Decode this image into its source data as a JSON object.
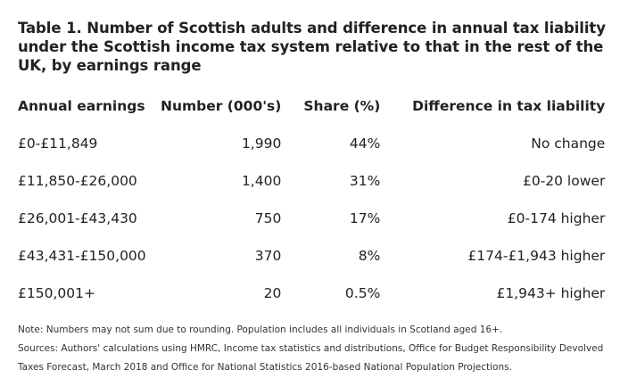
{
  "title": "Table 1. Number of Scottish adults and difference in annual tax liability under the Scottish income tax system relative to that in the rest of the UK, by earnings range",
  "columns": [
    "Annual earnings",
    "Number (000's)",
    "Share (%)",
    "Difference in tax liability"
  ],
  "rows": [
    [
      "£0-£11,849",
      "1,990",
      "44%",
      "No change"
    ],
    [
      "£11,850-£26,000",
      "1,400",
      "31%",
      "£0-20 lower"
    ],
    [
      "£26,001-£43,430",
      "750",
      "17%",
      "£0-174 higher"
    ],
    [
      "£43,431-£150,000",
      "370",
      "8%",
      "£174-£1,943 higher"
    ],
    [
      "£150,001+",
      "20",
      "0.5%",
      "£1,943+ higher"
    ]
  ],
  "notes": [
    "Note: Numbers may not sum due to rounding. Population includes all individuals in Scotland aged 16+.",
    "Sources: Authors' calculations using HMRC, Income tax statistics and distributions, Office for Budget Responsibility Devolved",
    "Taxes Forecast, March 2018 and Office for National Statistics 2016-based National Population Projections."
  ]
}
